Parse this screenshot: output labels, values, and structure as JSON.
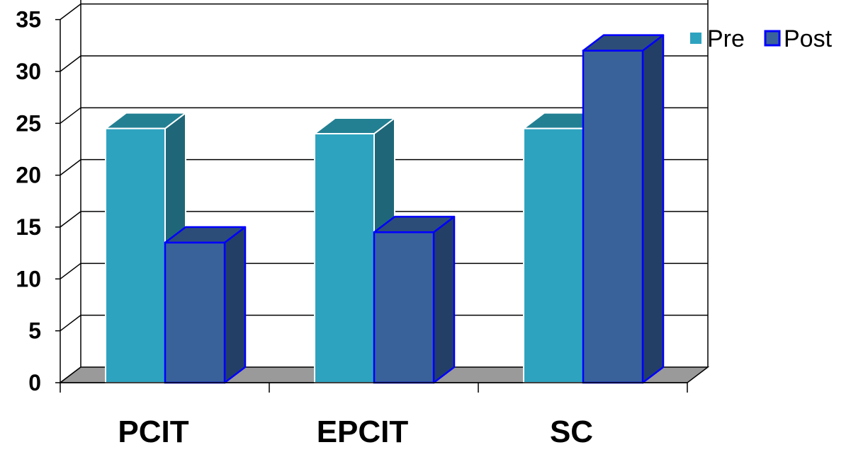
{
  "chart_data": {
    "type": "bar",
    "categories": [
      "PCIT",
      "EPCIT",
      "SC"
    ],
    "series": [
      {
        "name": "Pre",
        "values": [
          24.5,
          24,
          24.5
        ],
        "color": "#2ea3bf"
      },
      {
        "name": "Post",
        "values": [
          13.5,
          14.5,
          32
        ],
        "color": "#3a629a"
      }
    ],
    "ylim": [
      0,
      35
    ],
    "yticks": [
      0,
      5,
      10,
      15,
      20,
      25,
      30,
      35
    ],
    "grid": true,
    "three_d": true,
    "legend_position": "top-right",
    "colors": {
      "pre_face": "#2ea3bf",
      "pre_top": "#238093",
      "pre_side": "#1f6778",
      "post_face": "#3a629a",
      "post_top": "#2d4d79",
      "post_side": "#243f66",
      "post_outline": "#0000ff",
      "floor": "#9a9a9a"
    }
  }
}
